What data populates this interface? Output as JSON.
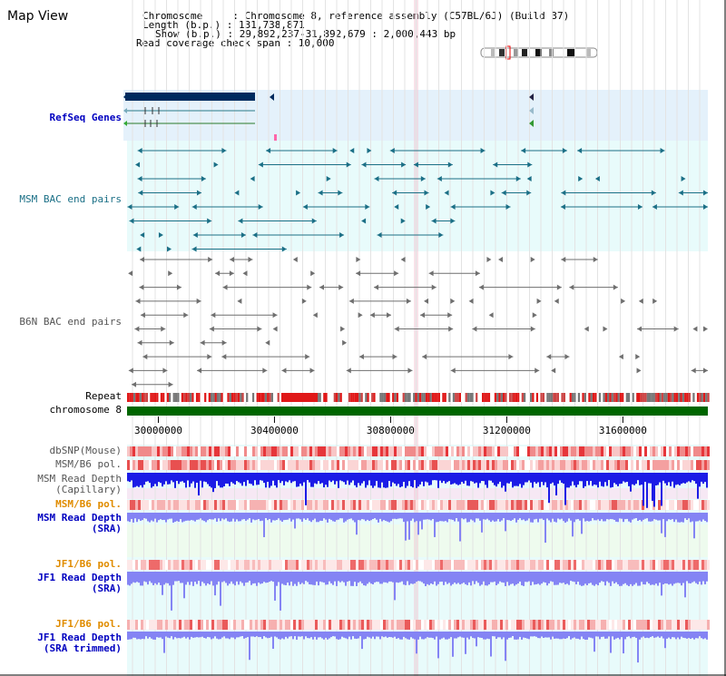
{
  "map_title": "Map View",
  "header": {
    "chromosome": "Chromosome     : Chromosome 8, reference assembly (C57BL/6J) (Build 37)",
    "length": "Length (b.p.) : 131,738,871",
    "show": "Show (b.p.) : 29,892,237-31,892,679 : 2,000,443 bp",
    "coverage": "Read coverage check span : 10,000"
  },
  "tracks": {
    "refseq": "RefSeq Genes",
    "msm_bac": "MSM BAC end pairs",
    "b6n_bac": "B6N BAC end pairs",
    "repeat": "Repeat",
    "chromosome": "chromosome 8",
    "dbsnp": "dbSNP(Mouse)",
    "msm_pol1": "MSM/B6 pol.",
    "msm_depth_cap_1": "MSM Read Depth",
    "msm_depth_cap_2": "(Capillary)",
    "msm_pol2": "MSM/B6 pol.",
    "msm_depth_sra_1": "MSM Read Depth",
    "msm_depth_sra_2": "(SRA)",
    "jf1_pol1": "JF1/B6 pol.",
    "jf1_depth_sra_1": "JF1 Read Depth",
    "jf1_depth_sra_2": "(SRA)",
    "jf1_pol2": "JF1/B6 pol.",
    "jf1_depth_trim_1": "JF1 Read Depth",
    "jf1_depth_trim_2": "(SRA trimmed)"
  },
  "axis_ticks": [
    {
      "label": "30000000",
      "pos": 30000000
    },
    {
      "label": "30400000",
      "pos": 30400000
    },
    {
      "label": "30800000",
      "pos": 30800000
    },
    {
      "label": "31200000",
      "pos": 31200000
    },
    {
      "label": "31600000",
      "pos": 31600000
    }
  ],
  "view_range": [
    29892237,
    31892679
  ],
  "colors": {
    "refseq_bg": "#e4f1fb",
    "track_bg": "#e8fbfb",
    "chromosome": "#006600",
    "depth_blue": "#1c1ce6",
    "depth_light": "#8484f4",
    "snp_red": "#e6363a",
    "gene_dark": "#002b5e",
    "bac_teal": "#1b6f86",
    "bac_gray": "#6f6f6f"
  }
}
